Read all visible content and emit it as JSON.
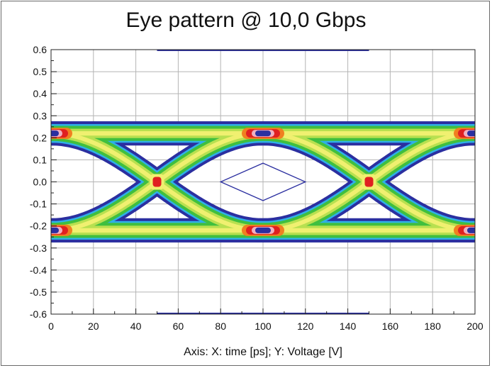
{
  "chart_data": {
    "type": "heatmap",
    "title": "Eye pattern @ 10,0 Gbps",
    "axis_caption": "Axis:   X: time [ps];   Y:   Voltage [V]",
    "xlabel": "time [ps]",
    "ylabel": "Voltage [V]",
    "xlim": [
      0,
      200
    ],
    "ylim": [
      -0.6,
      0.6
    ],
    "x_ticks": [
      "0",
      "20",
      "40",
      "60",
      "80",
      "100",
      "120",
      "140",
      "160",
      "180",
      "200"
    ],
    "y_ticks": [
      "0.6",
      "0.5",
      "0.4",
      "0.3",
      "0.2",
      "0.1",
      "0.0",
      "-0.1",
      "-0.2",
      "-0.3",
      "-0.4",
      "-0.5",
      "-0.6"
    ],
    "grid": true,
    "unit_interval_ps": 100,
    "logic_levels": [
      0.22,
      -0.22
    ],
    "crossing_times": [
      50,
      150
    ],
    "crossing_voltage": 0.0,
    "mask": {
      "shape": "diamond",
      "points": [
        [
          80,
          0.0
        ],
        [
          100,
          0.085
        ],
        [
          120,
          0.0
        ],
        [
          100,
          -0.085
        ]
      ]
    },
    "density_colors": [
      "#2b2fa0",
      "#2fb0e8",
      "#3fbf3f",
      "#b8e050",
      "#f0f070",
      "#f08020",
      "#e02020",
      "#f0b0c0"
    ],
    "mask_color": "#2b2fa0"
  }
}
